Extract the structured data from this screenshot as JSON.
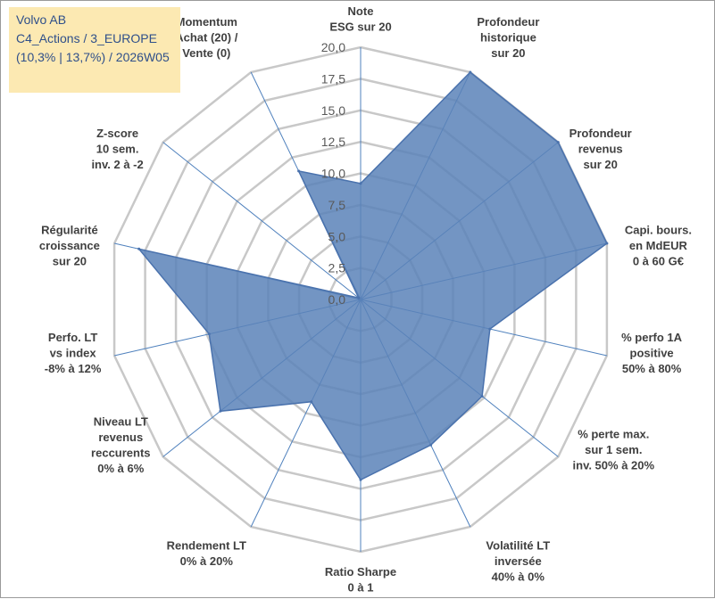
{
  "title": {
    "company": "Volvo AB",
    "category": "C4_Actions / 3_EUROPE",
    "details": "(10,3% | 13,7%) / 2026W05"
  },
  "chart_data": {
    "type": "radar",
    "title": "Volvo AB",
    "rmin": 0,
    "rmax": 20,
    "tick_labels": [
      "0,0",
      "2,5",
      "5,0",
      "7,5",
      "10,0",
      "12,5",
      "15,0",
      "17,5",
      "20,0"
    ],
    "axes": [
      {
        "label": [
          "Note",
          "ESG sur 20"
        ],
        "value": 9.2
      },
      {
        "label": [
          "Profondeur",
          "historique",
          "sur 20"
        ],
        "value": 20.0
      },
      {
        "label": [
          "Profondeur",
          "revenus",
          "sur 20"
        ],
        "value": 20.0
      },
      {
        "label": [
          "Capi. bours.",
          "en MdEUR",
          "0 à 60 G€"
        ],
        "value": 20.0
      },
      {
        "label": [
          "% perfo 1A",
          "positive",
          "50% à 80%"
        ],
        "value": 10.5
      },
      {
        "label": [
          "% perte max.",
          "sur 1 sem.",
          "inv. 50% à 20%"
        ],
        "value": 12.3
      },
      {
        "label": [
          "Volatilité LT",
          "inversée",
          "40% à 0%"
        ],
        "value": 12.8
      },
      {
        "label": [
          "Ratio Sharpe",
          "0 à 1"
        ],
        "value": 14.3
      },
      {
        "label": [
          "Rendement LT",
          "0% à 20%"
        ],
        "value": 9.0
      },
      {
        "label": [
          "Niveau LT",
          "revenus",
          "reccurents",
          "0% à 6%"
        ],
        "value": 14.2
      },
      {
        "label": [
          "Perfo. LT",
          "vs index",
          "-8% à 12%"
        ],
        "value": 12.3
      },
      {
        "label": [
          "Régularité",
          "croissance",
          "sur 20"
        ],
        "value": 18.0
      },
      {
        "label": [
          "Z-score",
          "10 sem.",
          "inv. 2 à -2"
        ],
        "value": 0.2
      },
      {
        "label": [
          "Momentum",
          "Achat (20) /",
          "Vente (0)"
        ],
        "value": 11.3
      }
    ],
    "colors": {
      "fill": "#5a82b8",
      "stroke": "#4a72ad",
      "grid": "#c8c8c8",
      "spoke": "#4f81bd"
    }
  }
}
